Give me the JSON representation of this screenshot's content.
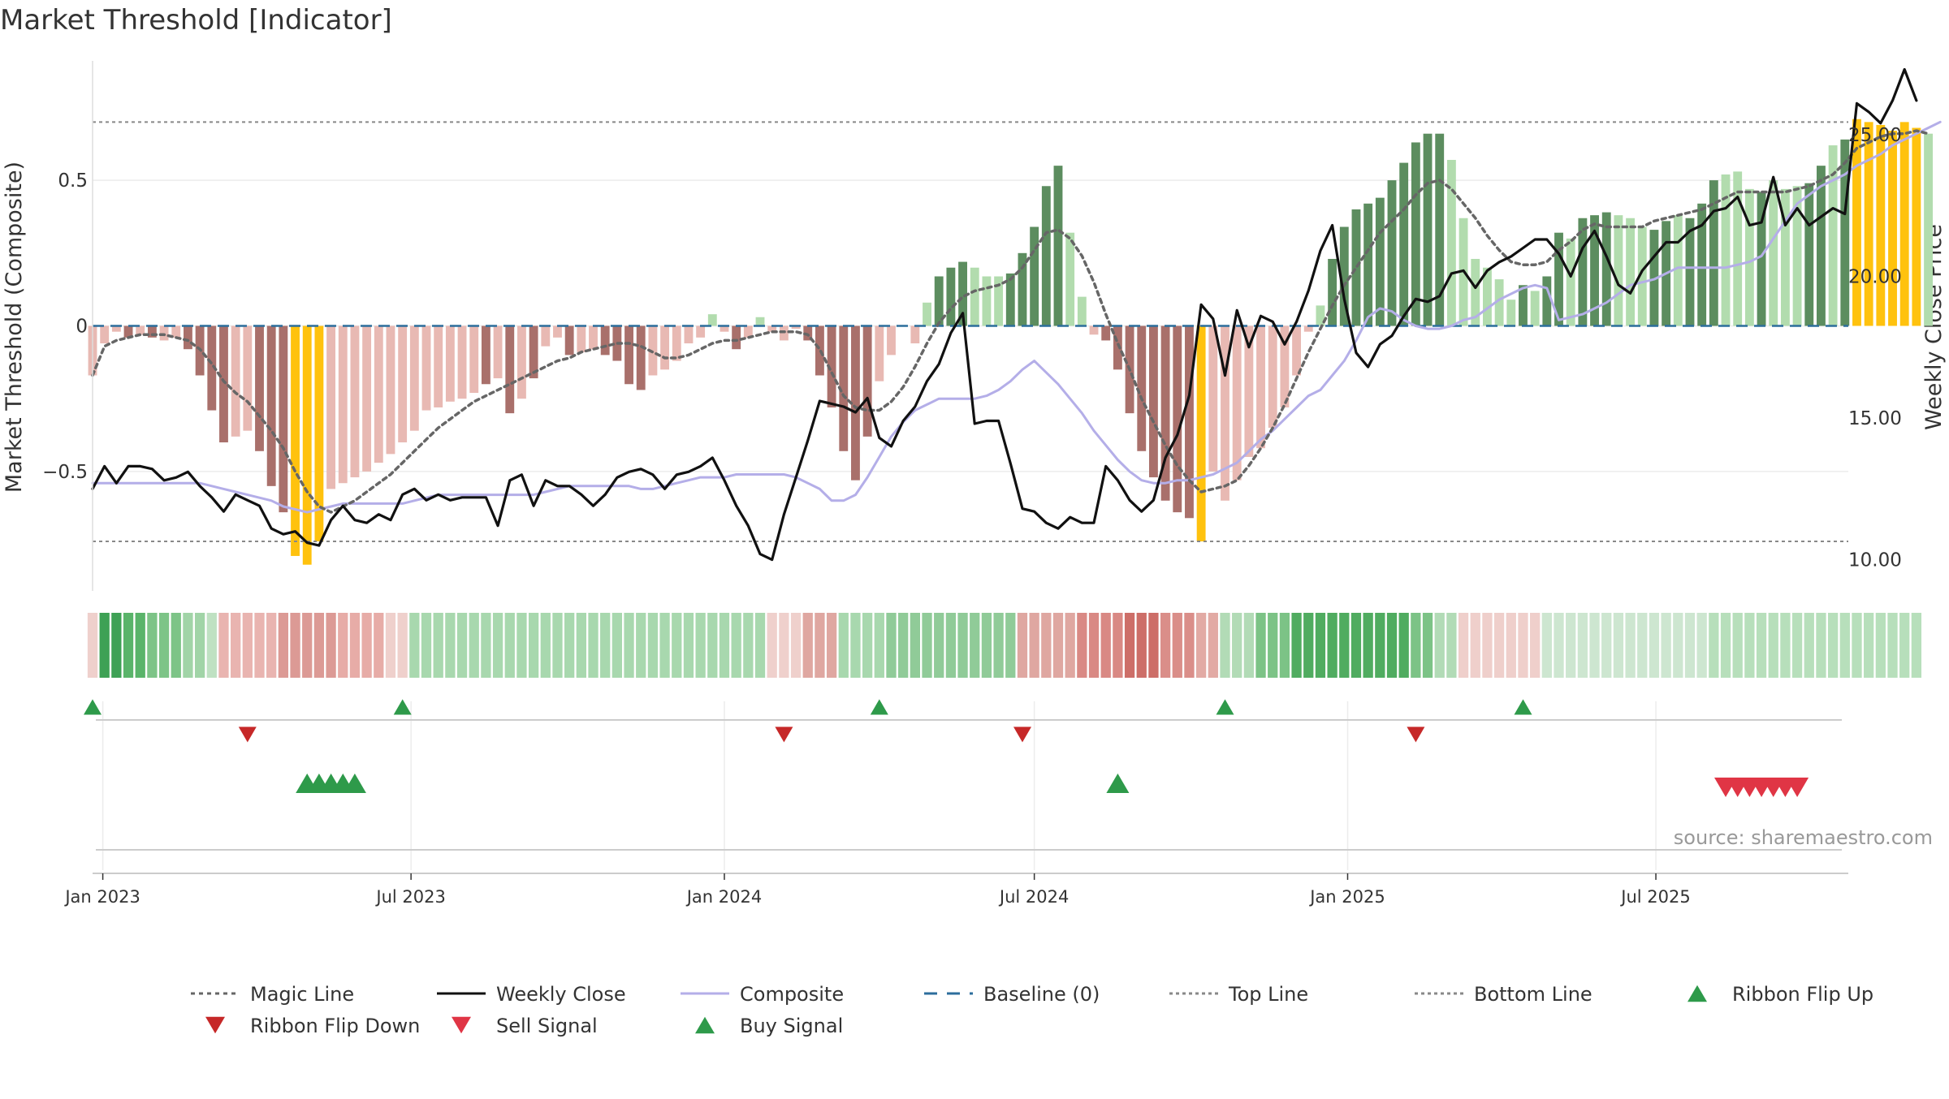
{
  "chart_data": {
    "type": "bar",
    "title": "Market Threshold [Indicator]",
    "ylabel": "Market Threshold (Composite)",
    "y2label": "Weekly Close Price",
    "source": "source: sharemaestro.com",
    "ylim": [
      -0.91,
      0.91
    ],
    "y2lim": [
      8.9,
      27.6
    ],
    "yticks": [
      {
        "v": 0.5,
        "label": "0.5"
      },
      {
        "v": 0,
        "label": "0"
      },
      {
        "v": -0.5,
        "label": "−0.5"
      }
    ],
    "y2ticks": [
      {
        "v": 25,
        "label": "25.00"
      },
      {
        "v": 20,
        "label": "20.00"
      },
      {
        "v": 15,
        "label": "15.00"
      },
      {
        "v": 10,
        "label": "10.00"
      }
    ],
    "xlim": [
      "2022-12-26",
      "2025-10-22"
    ],
    "xticks": [
      {
        "date": "2023-01-01",
        "label": "Jan 2023"
      },
      {
        "date": "2023-07-01",
        "label": "Jul 2023"
      },
      {
        "date": "2024-01-01",
        "label": "Jan 2024"
      },
      {
        "date": "2024-07-01",
        "label": "Jul 2024"
      },
      {
        "date": "2025-01-01",
        "label": "Jan 2025"
      },
      {
        "date": "2025-07-01",
        "label": "Jul 2025"
      }
    ],
    "reference_lines": {
      "top": 0.7,
      "bottom": -0.74,
      "baseline": 0
    },
    "start_date": "2022-12-26",
    "composite_bars": [
      -0.17,
      -0.06,
      -0.02,
      -0.04,
      -0.03,
      -0.04,
      -0.05,
      -0.04,
      -0.08,
      -0.17,
      -0.29,
      -0.4,
      -0.38,
      -0.36,
      -0.43,
      -0.55,
      -0.64,
      -0.79,
      -0.82,
      -0.74,
      -0.56,
      -0.54,
      -0.52,
      -0.5,
      -0.47,
      -0.44,
      -0.4,
      -0.36,
      -0.29,
      -0.28,
      -0.26,
      -0.25,
      -0.23,
      -0.2,
      -0.18,
      -0.3,
      -0.25,
      -0.18,
      -0.07,
      -0.04,
      -0.1,
      -0.09,
      -0.08,
      -0.1,
      -0.12,
      -0.2,
      -0.22,
      -0.17,
      -0.15,
      -0.12,
      -0.06,
      -0.04,
      0.04,
      -0.02,
      -0.08,
      -0.04,
      0.03,
      -0.02,
      -0.05,
      -0.01,
      -0.05,
      -0.17,
      -0.28,
      -0.43,
      -0.53,
      -0.38,
      -0.19,
      -0.1,
      0.0,
      -0.06,
      0.08,
      0.17,
      0.2,
      0.22,
      0.2,
      0.17,
      0.17,
      0.18,
      0.25,
      0.34,
      0.48,
      0.55,
      0.32,
      0.1,
      -0.03,
      -0.05,
      -0.15,
      -0.3,
      -0.43,
      -0.52,
      -0.6,
      -0.64,
      -0.66,
      -0.74,
      -0.5,
      -0.6,
      -0.53,
      -0.45,
      -0.42,
      -0.35,
      -0.28,
      -0.17,
      -0.02,
      0.07,
      0.23,
      0.34,
      0.4,
      0.42,
      0.44,
      0.5,
      0.56,
      0.63,
      0.66,
      0.66,
      0.57,
      0.37,
      0.23,
      0.2,
      0.16,
      0.09,
      0.14,
      0.12,
      0.17,
      0.32,
      0.3,
      0.37,
      0.38,
      0.39,
      0.38,
      0.37,
      0.34,
      0.33,
      0.36,
      0.38,
      0.37,
      0.42,
      0.5,
      0.52,
      0.53,
      0.47,
      0.46,
      0.5,
      0.47,
      0.48,
      0.49,
      0.55,
      0.62,
      0.64,
      0.71,
      0.7,
      0.69,
      0.67,
      0.7,
      0.68,
      0.66
    ],
    "composite_bar_colors": [
      "#e8b9b3",
      "#e8b9b3",
      "#e8b9b3",
      "#a9706b",
      "#e8b9b3",
      "#a9706b",
      "#e8b9b3",
      "#e8b9b3",
      "#a9706b",
      "#a9706b",
      "#a9706b",
      "#a9706b",
      "#e8b9b3",
      "#e8b9b3",
      "#a9706b",
      "#a9706b",
      "#a9706b",
      "#ffc20e",
      "#ffc20e",
      "#ffc20e",
      "#e8b9b3",
      "#e8b9b3",
      "#e8b9b3",
      "#e8b9b3",
      "#e8b9b3",
      "#e8b9b3",
      "#e8b9b3",
      "#e8b9b3",
      "#e8b9b3",
      "#e8b9b3",
      "#e8b9b3",
      "#e8b9b3",
      "#e8b9b3",
      "#a9706b",
      "#e8b9b3",
      "#a9706b",
      "#e8b9b3",
      "#a9706b",
      "#e8b9b3",
      "#e8b9b3",
      "#a9706b",
      "#e8b9b3",
      "#e8b9b3",
      "#a9706b",
      "#a9706b",
      "#a9706b",
      "#a9706b",
      "#e8b9b3",
      "#e8b9b3",
      "#e8b9b3",
      "#e8b9b3",
      "#e8b9b3",
      "#b2dcae",
      "#e8b9b3",
      "#a9706b",
      "#e8b9b3",
      "#b2dcae",
      "#e8b9b3",
      "#e8b9b3",
      "#e8b9b3",
      "#a9706b",
      "#a9706b",
      "#a9706b",
      "#a9706b",
      "#a9706b",
      "#a9706b",
      "#e8b9b3",
      "#e8b9b3",
      "#e8b9b3",
      "#e8b9b3",
      "#b2dcae",
      "#5c8d5f",
      "#5c8d5f",
      "#5c8d5f",
      "#b2dcae",
      "#b2dcae",
      "#b2dcae",
      "#5c8d5f",
      "#5c8d5f",
      "#5c8d5f",
      "#5c8d5f",
      "#5c8d5f",
      "#b2dcae",
      "#b2dcae",
      "#e8b9b3",
      "#a9706b",
      "#a9706b",
      "#a9706b",
      "#a9706b",
      "#a9706b",
      "#a9706b",
      "#a9706b",
      "#a9706b",
      "#ffc20e",
      "#e8b9b3",
      "#e8b9b3",
      "#e8b9b3",
      "#e8b9b3",
      "#e8b9b3",
      "#e8b9b3",
      "#e8b9b3",
      "#e8b9b3",
      "#e8b9b3",
      "#b2dcae",
      "#5c8d5f",
      "#5c8d5f",
      "#5c8d5f",
      "#5c8d5f",
      "#5c8d5f",
      "#5c8d5f",
      "#5c8d5f",
      "#5c8d5f",
      "#5c8d5f",
      "#5c8d5f",
      "#b2dcae",
      "#b2dcae",
      "#b2dcae",
      "#b2dcae",
      "#b2dcae",
      "#b2dcae",
      "#5c8d5f",
      "#b2dcae",
      "#5c8d5f",
      "#5c8d5f",
      "#b2dcae",
      "#5c8d5f",
      "#5c8d5f",
      "#5c8d5f",
      "#b2dcae",
      "#b2dcae",
      "#b2dcae",
      "#5c8d5f",
      "#5c8d5f",
      "#b2dcae",
      "#5c8d5f",
      "#5c8d5f",
      "#5c8d5f",
      "#b2dcae",
      "#b2dcae",
      "#b2dcae",
      "#5c8d5f",
      "#b2dcae",
      "#b2dcae",
      "#b2dcae",
      "#5c8d5f",
      "#5c8d5f",
      "#b2dcae",
      "#5c8d5f",
      "#ffc20e",
      "#ffc20e",
      "#ffc20e",
      "#ffc20e",
      "#ffc20e",
      "#ffc20e",
      "#b2dcae"
    ],
    "magic_line": [
      -0.17,
      -0.07,
      -0.05,
      -0.04,
      -0.03,
      -0.03,
      -0.03,
      -0.04,
      -0.05,
      -0.08,
      -0.13,
      -0.19,
      -0.23,
      -0.26,
      -0.31,
      -0.36,
      -0.42,
      -0.5,
      -0.57,
      -0.62,
      -0.64,
      -0.62,
      -0.6,
      -0.57,
      -0.54,
      -0.51,
      -0.47,
      -0.43,
      -0.39,
      -0.35,
      -0.32,
      -0.29,
      -0.26,
      -0.24,
      -0.22,
      -0.2,
      -0.18,
      -0.16,
      -0.14,
      -0.12,
      -0.11,
      -0.09,
      -0.08,
      -0.07,
      -0.06,
      -0.06,
      -0.07,
      -0.09,
      -0.11,
      -0.11,
      -0.1,
      -0.08,
      -0.06,
      -0.05,
      -0.05,
      -0.04,
      -0.03,
      -0.02,
      -0.02,
      -0.02,
      -0.03,
      -0.08,
      -0.16,
      -0.24,
      -0.28,
      -0.29,
      -0.29,
      -0.26,
      -0.21,
      -0.14,
      -0.06,
      0.01,
      0.06,
      0.1,
      0.12,
      0.13,
      0.14,
      0.16,
      0.2,
      0.26,
      0.32,
      0.33,
      0.3,
      0.24,
      0.15,
      0.04,
      -0.06,
      -0.15,
      -0.25,
      -0.33,
      -0.41,
      -0.48,
      -0.53,
      -0.57,
      -0.56,
      -0.55,
      -0.53,
      -0.48,
      -0.42,
      -0.35,
      -0.27,
      -0.18,
      -0.09,
      -0.01,
      0.07,
      0.14,
      0.2,
      0.26,
      0.32,
      0.36,
      0.4,
      0.45,
      0.49,
      0.5,
      0.47,
      0.42,
      0.37,
      0.31,
      0.26,
      0.22,
      0.21,
      0.21,
      0.22,
      0.26,
      0.29,
      0.33,
      0.35,
      0.34,
      0.34,
      0.34,
      0.34,
      0.36,
      0.37,
      0.38,
      0.39,
      0.4,
      0.42,
      0.44,
      0.46,
      0.46,
      0.46,
      0.46,
      0.46,
      0.47,
      0.48,
      0.5,
      0.52,
      0.56,
      0.61,
      0.63,
      0.65,
      0.66,
      0.66,
      0.67,
      0.66
    ],
    "composite_line": [
      -0.54,
      -0.54,
      -0.54,
      -0.54,
      -0.54,
      -0.54,
      -0.54,
      -0.54,
      -0.54,
      -0.54,
      -0.55,
      -0.56,
      -0.57,
      -0.58,
      -0.59,
      -0.6,
      -0.62,
      -0.63,
      -0.64,
      -0.63,
      -0.62,
      -0.61,
      -0.61,
      -0.61,
      -0.61,
      -0.61,
      -0.61,
      -0.6,
      -0.59,
      -0.58,
      -0.58,
      -0.58,
      -0.58,
      -0.58,
      -0.58,
      -0.58,
      -0.58,
      -0.58,
      -0.57,
      -0.56,
      -0.55,
      -0.55,
      -0.55,
      -0.55,
      -0.55,
      -0.55,
      -0.56,
      -0.56,
      -0.55,
      -0.54,
      -0.53,
      -0.52,
      -0.52,
      -0.52,
      -0.51,
      -0.51,
      -0.51,
      -0.51,
      -0.51,
      -0.52,
      -0.54,
      -0.56,
      -0.6,
      -0.6,
      -0.58,
      -0.52,
      -0.45,
      -0.38,
      -0.33,
      -0.29,
      -0.27,
      -0.25,
      -0.25,
      -0.25,
      -0.25,
      -0.24,
      -0.22,
      -0.19,
      -0.15,
      -0.12,
      -0.16,
      -0.2,
      -0.25,
      -0.3,
      -0.36,
      -0.41,
      -0.46,
      -0.5,
      -0.53,
      -0.54,
      -0.54,
      -0.53,
      -0.53,
      -0.52,
      -0.51,
      -0.49,
      -0.47,
      -0.43,
      -0.39,
      -0.36,
      -0.32,
      -0.28,
      -0.24,
      -0.22,
      -0.17,
      -0.12,
      -0.05,
      0.03,
      0.06,
      0.05,
      0.02,
      0.0,
      -0.01,
      -0.01,
      0.0,
      0.02,
      0.03,
      0.06,
      0.09,
      0.11,
      0.13,
      0.14,
      0.13,
      0.02,
      0.03,
      0.04,
      0.06,
      0.08,
      0.11,
      0.14,
      0.15,
      0.16,
      0.18,
      0.2,
      0.2,
      0.2,
      0.2,
      0.2,
      0.21,
      0.22,
      0.24,
      0.3,
      0.36,
      0.42,
      0.45,
      0.48,
      0.5,
      0.52,
      0.55,
      0.57,
      0.59,
      0.62,
      0.64,
      0.66,
      0.68,
      0.7
    ],
    "weekly_close": [
      12.5,
      13.3,
      12.7,
      13.3,
      13.3,
      13.2,
      12.8,
      12.9,
      13.1,
      12.6,
      12.2,
      11.7,
      12.3,
      12.1,
      11.9,
      11.1,
      10.9,
      11.0,
      10.6,
      10.5,
      11.4,
      11.9,
      11.4,
      11.3,
      11.6,
      11.4,
      12.3,
      12.5,
      12.1,
      12.3,
      12.1,
      12.2,
      12.2,
      12.2,
      11.2,
      12.8,
      13.0,
      11.9,
      12.8,
      12.6,
      12.6,
      12.3,
      11.9,
      12.3,
      12.9,
      13.1,
      13.2,
      13.0,
      12.5,
      13.0,
      13.1,
      13.3,
      13.6,
      12.8,
      11.9,
      11.2,
      10.2,
      10.0,
      11.6,
      12.9,
      14.2,
      15.6,
      15.5,
      15.4,
      15.2,
      15.7,
      14.3,
      14.0,
      14.9,
      15.4,
      16.3,
      16.9,
      18.0,
      18.7,
      14.8,
      14.9,
      14.9,
      13.4,
      11.8,
      11.7,
      11.3,
      11.1,
      11.5,
      11.3,
      11.3,
      13.3,
      12.8,
      12.1,
      11.7,
      12.1,
      13.6,
      14.4,
      15.8,
      19.0,
      18.5,
      16.5,
      18.8,
      17.5,
      18.6,
      18.4,
      17.6,
      18.4,
      19.5,
      20.9,
      21.8,
      19.2,
      17.3,
      16.8,
      17.6,
      17.9,
      18.6,
      19.2,
      19.1,
      19.3,
      20.1,
      20.2,
      19.6,
      20.2,
      20.5,
      20.7,
      21.0,
      21.3,
      21.3,
      20.8,
      20.0,
      21.0,
      21.6,
      20.7,
      19.7,
      19.4,
      20.2,
      20.7,
      21.2,
      21.2,
      21.6,
      21.8,
      22.3,
      22.4,
      22.8,
      21.8,
      21.9,
      23.5,
      21.8,
      22.4,
      21.8,
      22.1,
      22.4,
      22.2,
      26.1,
      25.8,
      25.4,
      26.2,
      27.3,
      26.2
    ],
    "ribbon": [
      {
        "color": "#efd0cc",
        "weeks": 1
      },
      {
        "color": "#3ea155",
        "weeks": 2
      },
      {
        "color": "#5ab46a",
        "weeks": 2
      },
      {
        "color": "#7dc487",
        "weeks": 3
      },
      {
        "color": "#a1d4a7",
        "weeks": 2
      },
      {
        "color": "#bfe1c2",
        "weeks": 1
      },
      {
        "color": "#e9b4b0",
        "weeks": 5
      },
      {
        "color": "#dc9a95",
        "weeks": 5
      },
      {
        "color": "#e7aca7",
        "weeks": 4
      },
      {
        "color": "#efd0cc",
        "weeks": 2
      },
      {
        "color": "#a8d8ae",
        "weeks": 30
      },
      {
        "color": "#efd0cc",
        "weeks": 3
      },
      {
        "color": "#dfa7a1",
        "weeks": 3
      },
      {
        "color": "#a8d8ae",
        "weeks": 4
      },
      {
        "color": "#90cb98",
        "weeks": 11
      },
      {
        "color": "#dfa7a1",
        "weeks": 5
      },
      {
        "color": "#d98984",
        "weeks": 4
      },
      {
        "color": "#cd6e68",
        "weeks": 3
      },
      {
        "color": "#da8e89",
        "weeks": 3
      },
      {
        "color": "#e2aaa4",
        "weeks": 2
      },
      {
        "color": "#b2dbb6",
        "weeks": 3
      },
      {
        "color": "#7cc386",
        "weeks": 3
      },
      {
        "color": "#50ac60",
        "weeks": 10
      },
      {
        "color": "#7cc386",
        "weeks": 2
      },
      {
        "color": "#b2dbb6",
        "weeks": 2
      },
      {
        "color": "#efcfcb",
        "weeks": 7
      },
      {
        "color": "#cde6d0",
        "weeks": 14
      },
      {
        "color": "#b7dfbb",
        "weeks": 18
      }
    ],
    "ribbon_flip_up": [
      "2022-12-26",
      "2023-06-26",
      "2024-04-01",
      "2024-10-21",
      "2025-04-14"
    ],
    "ribbon_flip_down": [
      "2023-03-27",
      "2024-02-05",
      "2024-06-24",
      "2025-02-10"
    ],
    "buy_signals": [
      "2023-05-01",
      "2023-05-08",
      "2023-05-15",
      "2023-05-22",
      "2023-05-29",
      "2024-08-19"
    ],
    "sell_signals": [
      "2025-08-11",
      "2025-08-18",
      "2025-08-25",
      "2025-09-01",
      "2025-09-08",
      "2025-09-15",
      "2025-09-22"
    ],
    "series": [
      {
        "name": "Magic Line",
        "color": "#666666",
        "style": "dotted"
      },
      {
        "name": "Weekly Close",
        "color": "#111111",
        "style": "solid"
      },
      {
        "name": "Composite",
        "color": "#b4aee8",
        "style": "solid"
      },
      {
        "name": "Baseline (0)",
        "color": "#2c6e9c",
        "style": "dashed"
      },
      {
        "name": "Top Line",
        "color": "#888888",
        "style": "dotted"
      },
      {
        "name": "Bottom Line",
        "color": "#888888",
        "style": "dotted"
      },
      {
        "name": "Ribbon Flip Up",
        "color": "#2e9a4a",
        "marker": "triangle-up"
      },
      {
        "name": "Ribbon Flip Down",
        "color": "#c62828",
        "marker": "triangle-down"
      },
      {
        "name": "Sell Signal",
        "color": "#e03545",
        "marker": "triangle-down"
      },
      {
        "name": "Buy Signal",
        "color": "#2e9a4a",
        "marker": "triangle-up"
      }
    ],
    "legend": {
      "position": "bottom",
      "columns": 7
    },
    "grid": true
  }
}
